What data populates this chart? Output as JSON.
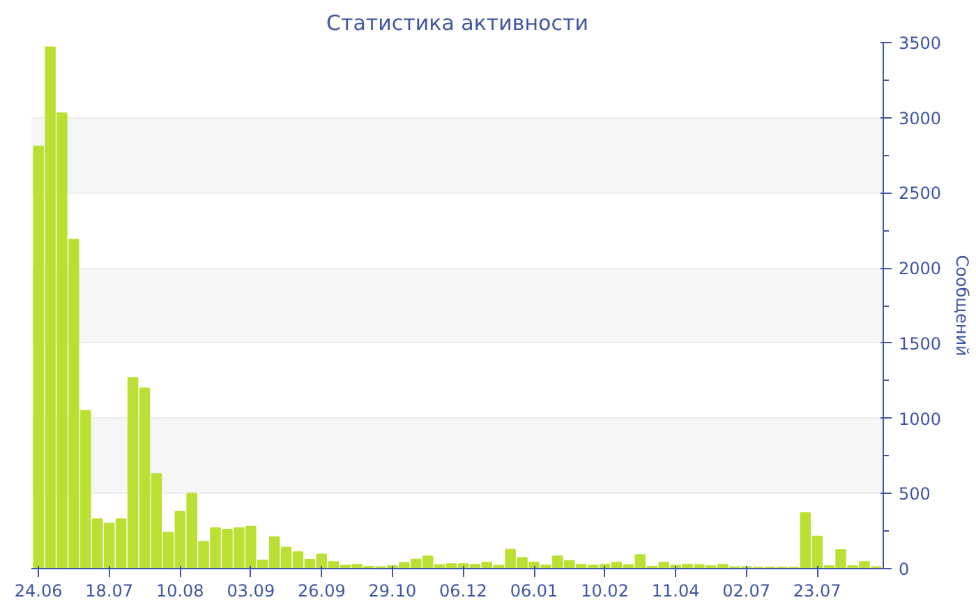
{
  "chart_data": {
    "type": "bar",
    "title": "Статистика активности",
    "ylabel": "Сообщений",
    "categories": [
      "24.06",
      null,
      null,
      null,
      null,
      null,
      "18.07",
      null,
      null,
      null,
      null,
      null,
      "10.08",
      null,
      null,
      null,
      null,
      null,
      "03.09",
      null,
      null,
      null,
      null,
      null,
      "26.09",
      null,
      null,
      null,
      null,
      null,
      "29.10",
      null,
      null,
      null,
      null,
      null,
      "06.12",
      null,
      null,
      null,
      null,
      null,
      "06.01",
      null,
      null,
      null,
      null,
      null,
      "10.02",
      null,
      null,
      null,
      null,
      null,
      "11.04",
      null,
      null,
      null,
      null,
      null,
      "02.07",
      null,
      null,
      null,
      null,
      null,
      "23.07",
      null,
      null,
      null,
      null,
      null
    ],
    "values": [
      2810,
      3470,
      3030,
      2190,
      1050,
      330,
      300,
      330,
      1270,
      1200,
      630,
      240,
      380,
      500,
      180,
      270,
      260,
      270,
      280,
      55,
      210,
      140,
      110,
      60,
      95,
      45,
      21,
      27,
      14,
      10,
      17,
      38,
      62,
      82,
      24,
      31,
      31,
      27,
      41,
      21,
      127,
      72,
      41,
      21,
      82,
      51,
      27,
      21,
      27,
      41,
      24,
      92,
      14,
      41,
      21,
      27,
      24,
      17,
      27,
      10,
      10,
      7,
      7,
      7,
      7,
      370,
      215,
      17,
      125,
      17,
      45,
      10
    ],
    "color": "#bbe034",
    "ylim": [
      0,
      3500
    ],
    "yticks": [
      0,
      500,
      1000,
      1500,
      2000,
      2500,
      3000,
      3500
    ],
    "grid": "y"
  }
}
